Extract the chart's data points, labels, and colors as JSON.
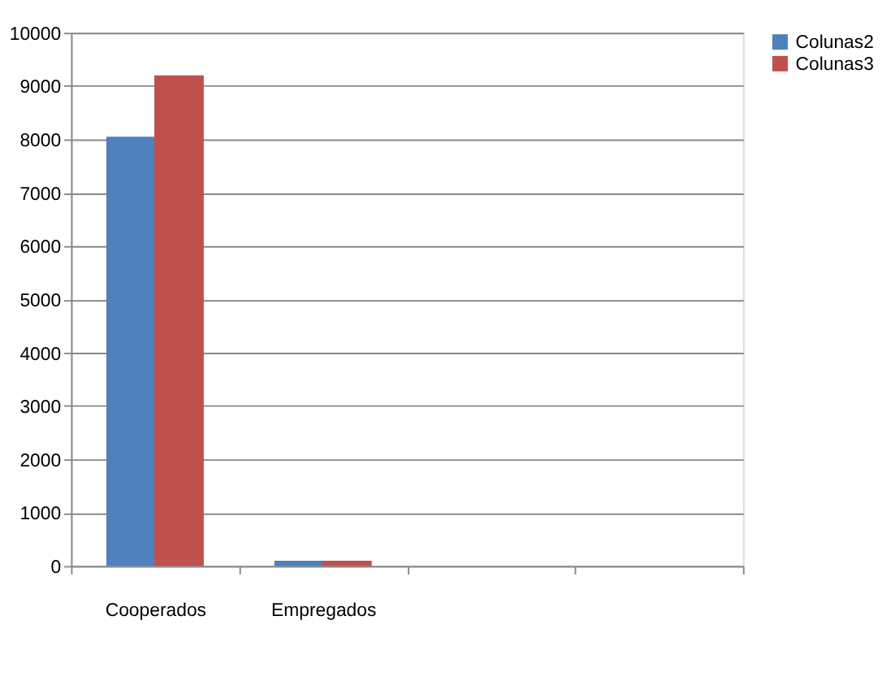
{
  "chart_data": {
    "type": "bar",
    "categories": [
      "Cooperados",
      "Empregados",
      null,
      null
    ],
    "series": [
      {
        "name": "Colunas2",
        "color": "#4f81bd",
        "values": [
          8050,
          100,
          null,
          null
        ]
      },
      {
        "name": "Colunas3",
        "color": "#c0504d",
        "values": [
          9200,
          100,
          null,
          null
        ]
      }
    ],
    "ylim": [
      0,
      10000
    ],
    "yticks": [
      0,
      1000,
      2000,
      3000,
      4000,
      5000,
      6000,
      7000,
      8000,
      9000,
      10000
    ],
    "grid": "y",
    "legend": "right"
  }
}
